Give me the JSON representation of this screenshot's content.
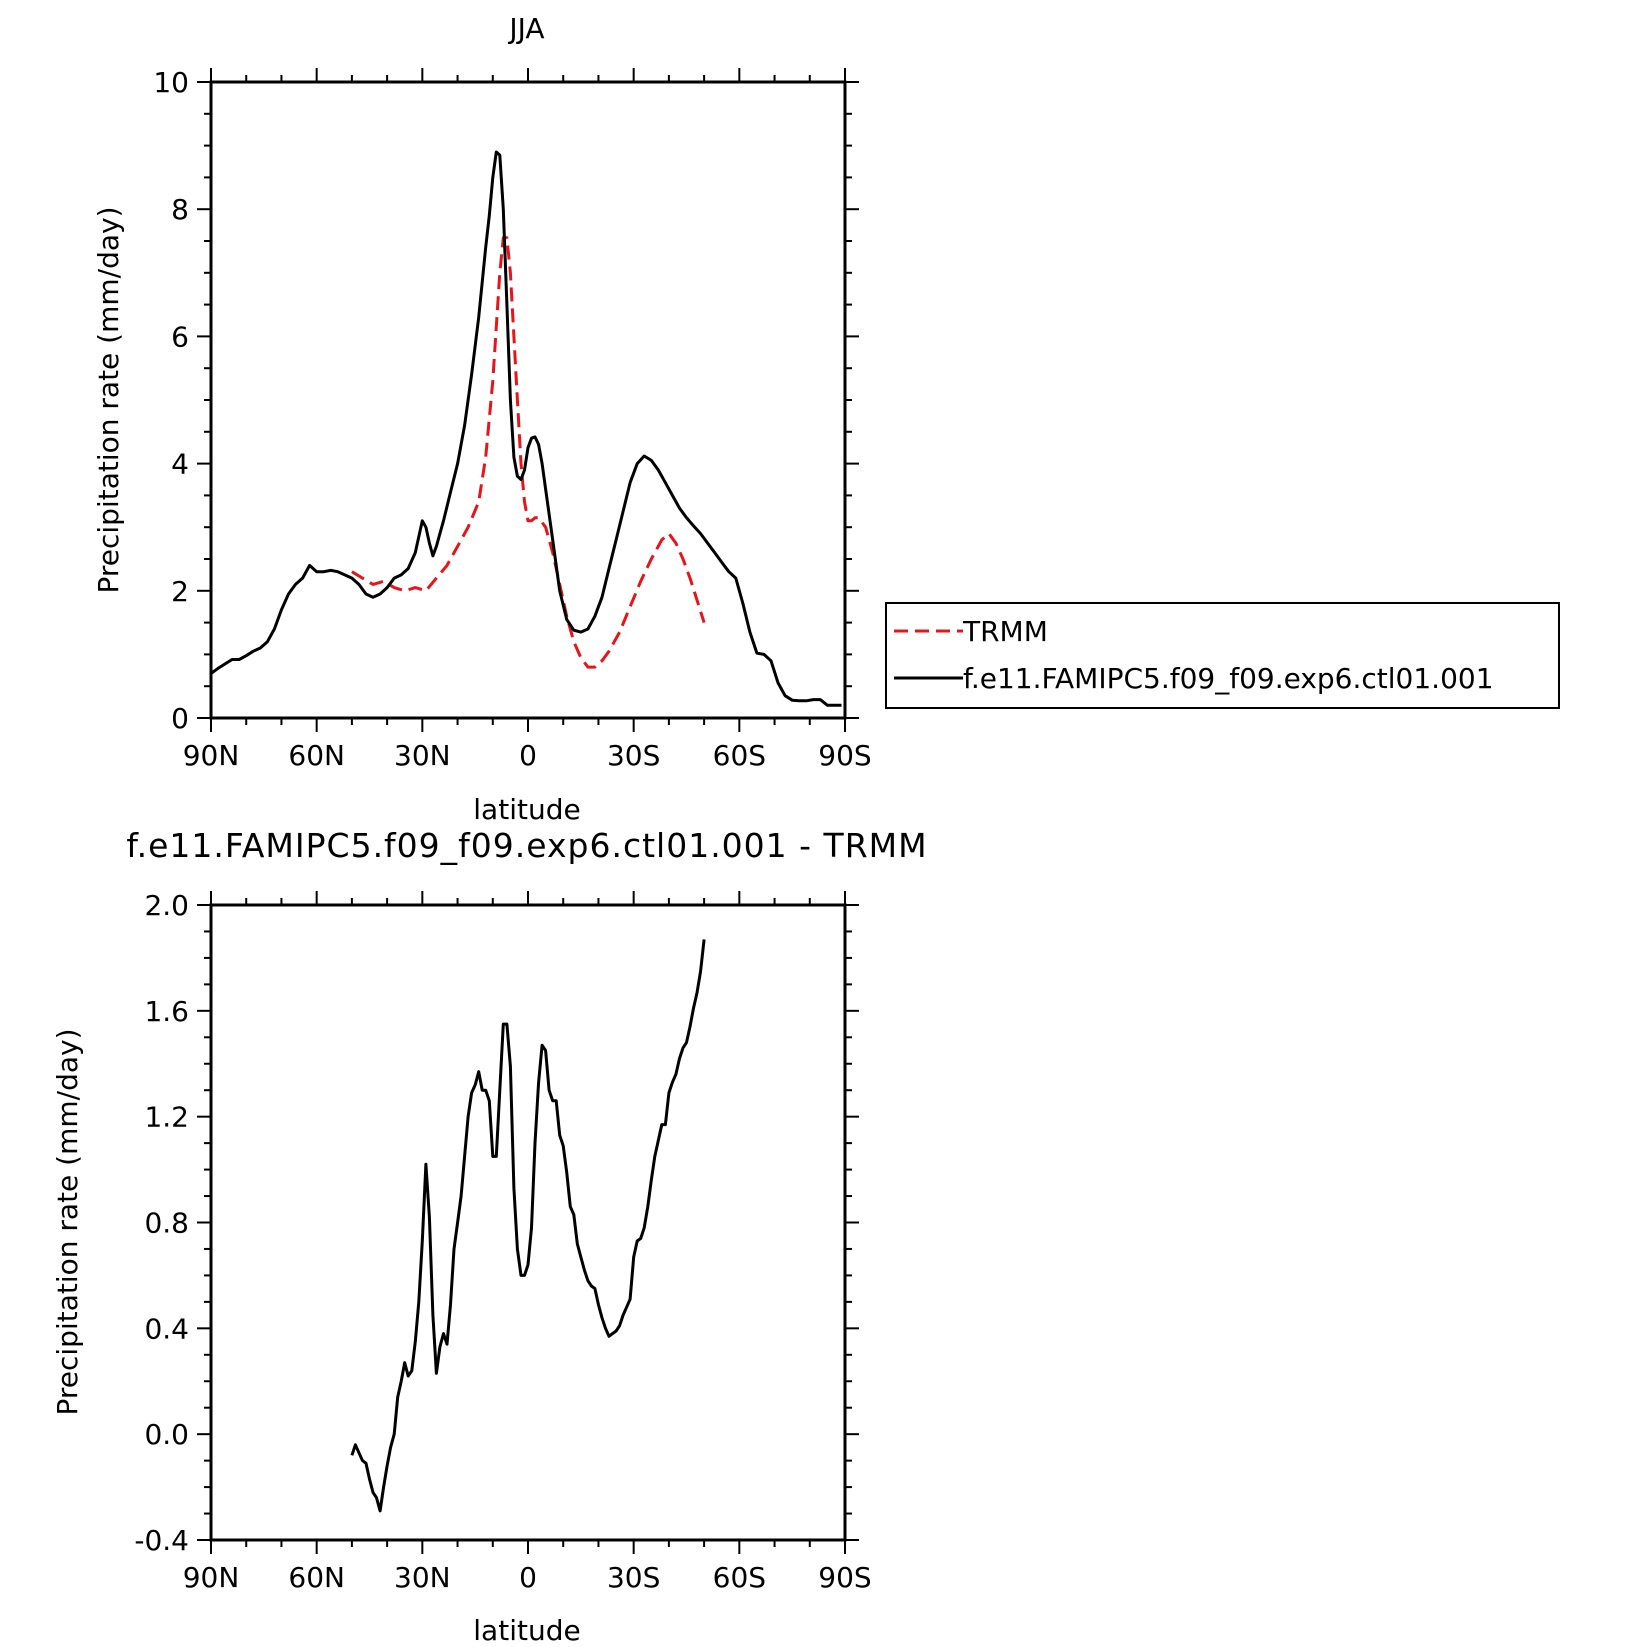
{
  "chart_data": [
    {
      "type": "line",
      "title": "JJA",
      "xlabel": "latitude",
      "ylabel": "Precipitation rate (mm/day)",
      "xlim": [
        90,
        -90
      ],
      "ylim": [
        0,
        10
      ],
      "x_tick_values": [
        90,
        60,
        30,
        0,
        -30,
        -60,
        -90
      ],
      "x_tick_labels": [
        "90N",
        "60N",
        "30N",
        "0",
        "30S",
        "60S",
        "90S"
      ],
      "y_tick_values": [
        0,
        2,
        4,
        6,
        8,
        10
      ],
      "y_tick_labels": [
        "0",
        "2",
        "4",
        "6",
        "8",
        "10"
      ],
      "legend_position": "right",
      "grid": false,
      "series": [
        {
          "name": "TRMM",
          "color": "#e8141a",
          "style": "dashed",
          "x": [
            50,
            47,
            44,
            41,
            38,
            35,
            32,
            29,
            26,
            23,
            20,
            17,
            14,
            12,
            10,
            8,
            7,
            6,
            5,
            4,
            3,
            2,
            1,
            0,
            -1,
            -2,
            -3,
            -5,
            -7,
            -9,
            -11,
            -13,
            -15,
            -17,
            -19,
            -21,
            -23,
            -26,
            -29,
            -32,
            -35,
            -38,
            -40,
            -42,
            -44,
            -46,
            -48,
            -50
          ],
          "y": [
            2.3,
            2.2,
            2.1,
            2.15,
            2.05,
            2.0,
            2.05,
            2.0,
            2.2,
            2.4,
            2.7,
            3.0,
            3.4,
            4.1,
            5.3,
            7.0,
            7.55,
            7.55,
            7.0,
            6.0,
            5.0,
            4.0,
            3.4,
            3.1,
            3.1,
            3.15,
            3.15,
            3.0,
            2.6,
            2.1,
            1.6,
            1.2,
            0.95,
            0.8,
            0.8,
            0.9,
            1.05,
            1.35,
            1.75,
            2.15,
            2.5,
            2.8,
            2.9,
            2.75,
            2.5,
            2.2,
            1.85,
            1.5
          ]
        },
        {
          "name": "f.e11.FAMIPC5.f09_f09.exp6.ctl01.001",
          "color": "#000000",
          "style": "solid",
          "x": [
            90,
            88,
            86,
            84,
            82,
            80,
            78,
            76,
            74,
            72,
            70,
            68,
            66,
            64,
            62,
            60,
            58,
            56,
            54,
            52,
            50,
            48,
            46,
            44,
            42,
            40,
            38,
            36,
            34,
            32,
            30,
            29,
            28,
            27,
            26,
            25,
            24,
            22,
            20,
            18,
            16,
            14,
            12,
            11,
            10,
            9,
            8,
            7,
            6,
            5,
            4,
            3,
            2,
            1,
            0,
            -1,
            -2,
            -3,
            -4,
            -5,
            -7,
            -9,
            -11,
            -13,
            -15,
            -17,
            -19,
            -21,
            -23,
            -25,
            -27,
            -29,
            -31,
            -33,
            -35,
            -37,
            -39,
            -41,
            -43,
            -45,
            -47,
            -49,
            -51,
            -53,
            -55,
            -57,
            -59,
            -61,
            -63,
            -65,
            -67,
            -69,
            -71,
            -73,
            -75,
            -77,
            -79,
            -81,
            -83,
            -85,
            -87,
            -89
          ],
          "y": [
            0.7,
            0.78,
            0.85,
            0.92,
            0.92,
            0.98,
            1.05,
            1.1,
            1.2,
            1.4,
            1.7,
            1.95,
            2.1,
            2.2,
            2.4,
            2.3,
            2.3,
            2.32,
            2.3,
            2.25,
            2.2,
            2.1,
            1.95,
            1.9,
            1.95,
            2.05,
            2.2,
            2.25,
            2.35,
            2.6,
            3.1,
            3.0,
            2.75,
            2.55,
            2.7,
            2.9,
            3.1,
            3.55,
            4.0,
            4.6,
            5.4,
            6.3,
            7.4,
            7.9,
            8.5,
            8.9,
            8.85,
            8.0,
            6.5,
            5.0,
            4.1,
            3.8,
            3.75,
            3.9,
            4.25,
            4.4,
            4.42,
            4.3,
            4.0,
            3.6,
            2.8,
            2.0,
            1.55,
            1.38,
            1.35,
            1.4,
            1.6,
            1.9,
            2.35,
            2.8,
            3.25,
            3.7,
            4.0,
            4.12,
            4.05,
            3.9,
            3.7,
            3.5,
            3.3,
            3.15,
            3.02,
            2.9,
            2.75,
            2.6,
            2.45,
            2.3,
            2.2,
            1.8,
            1.35,
            1.02,
            1.0,
            0.9,
            0.55,
            0.35,
            0.28,
            0.27,
            0.27,
            0.29,
            0.29,
            0.2,
            0.2,
            0.2
          ]
        }
      ]
    },
    {
      "type": "line",
      "title": "f.e11.FAMIPC5.f09_f09.exp6.ctl01.001 - TRMM",
      "xlabel": "latitude",
      "ylabel": "Precipitation rate (mm/day)",
      "xlim": [
        90,
        -90
      ],
      "ylim": [
        -0.4,
        2.0
      ],
      "x_tick_values": [
        90,
        60,
        30,
        0,
        -30,
        -60,
        -90
      ],
      "x_tick_labels": [
        "90N",
        "60N",
        "30N",
        "0",
        "30S",
        "60S",
        "90S"
      ],
      "y_tick_values": [
        -0.4,
        0.0,
        0.4,
        0.8,
        1.2,
        1.6,
        2.0
      ],
      "y_tick_labels": [
        "-0.4",
        "0.0",
        "0.4",
        "0.8",
        "1.2",
        "1.6",
        "2.0"
      ],
      "grid": false,
      "series": [
        {
          "color": "#000000",
          "style": "solid",
          "x": [
            50,
            49,
            48,
            47,
            46,
            45,
            44,
            43,
            42,
            41,
            40,
            39,
            38,
            37,
            36,
            35,
            34,
            33,
            32,
            31,
            30,
            29,
            28,
            27,
            26,
            25,
            24,
            23,
            22,
            21,
            20,
            19,
            18,
            17,
            16,
            15,
            14,
            13,
            12,
            11,
            10,
            9,
            8,
            7,
            6,
            5,
            4,
            3,
            2,
            1,
            0,
            -1,
            -2,
            -3,
            -4,
            -5,
            -6,
            -7,
            -8,
            -9,
            -10,
            -11,
            -12,
            -13,
            -14,
            -15,
            -16,
            -17,
            -18,
            -19,
            -20,
            -21,
            -22,
            -23,
            -24,
            -25,
            -26,
            -27,
            -28,
            -29,
            -30,
            -31,
            -32,
            -33,
            -34,
            -35,
            -36,
            -37,
            -38,
            -39,
            -40,
            -41,
            -42,
            -43,
            -44,
            -45,
            -46,
            -47,
            -48,
            -49,
            -50
          ],
          "y": [
            -0.08,
            -0.04,
            -0.07,
            -0.1,
            -0.11,
            -0.17,
            -0.22,
            -0.24,
            -0.29,
            -0.2,
            -0.12,
            -0.05,
            0.0,
            0.14,
            0.2,
            0.27,
            0.22,
            0.24,
            0.35,
            0.5,
            0.73,
            1.02,
            0.82,
            0.45,
            0.23,
            0.33,
            0.38,
            0.34,
            0.49,
            0.7,
            0.8,
            0.9,
            1.05,
            1.2,
            1.29,
            1.32,
            1.37,
            1.3,
            1.3,
            1.26,
            1.05,
            1.05,
            1.3,
            1.55,
            1.55,
            1.39,
            0.93,
            0.7,
            0.6,
            0.6,
            0.64,
            0.78,
            1.1,
            1.33,
            1.47,
            1.45,
            1.3,
            1.26,
            1.26,
            1.13,
            1.09,
            0.99,
            0.86,
            0.83,
            0.72,
            0.67,
            0.62,
            0.58,
            0.56,
            0.55,
            0.49,
            0.44,
            0.4,
            0.37,
            0.38,
            0.39,
            0.41,
            0.45,
            0.48,
            0.51,
            0.67,
            0.73,
            0.74,
            0.78,
            0.86,
            0.96,
            1.05,
            1.11,
            1.17,
            1.17,
            1.29,
            1.33,
            1.36,
            1.42,
            1.46,
            1.48,
            1.54,
            1.61,
            1.67,
            1.75,
            1.87
          ]
        }
      ]
    }
  ]
}
